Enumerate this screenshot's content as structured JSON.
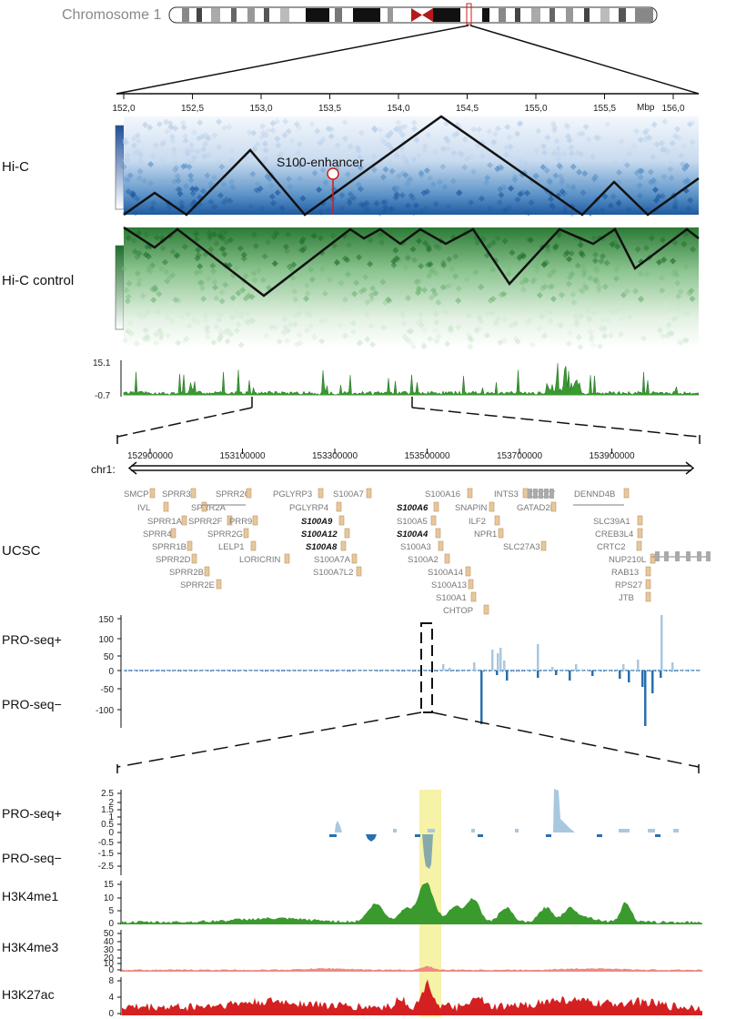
{
  "colors": {
    "hic": "#1f5fa8",
    "hic_control": "#2e8b32",
    "green": "#3a9a2e",
    "pro_plus": "#a8c8e0",
    "pro_minus": "#2a6fad",
    "h3k4me3": "#f08a80",
    "h3k27ac": "#d42020",
    "highlight": "#f3ee8a",
    "gene_box": "#e8c89a"
  },
  "chromosome": {
    "label": "Chromosome 1"
  },
  "axis_top": {
    "ticks": [
      "152,0",
      "152,5",
      "153,0",
      "153,5",
      "154,0",
      "154,5",
      "155,0",
      "155,5",
      "156,0"
    ],
    "unit": "Mbp"
  },
  "tracks": {
    "hic": "Hi-C",
    "hic_control": "Hi-C control",
    "ucsc": "UCSC",
    "pro_plus": "PRO-seq+",
    "pro_minus": "PRO-seq−",
    "h3k4me1": "H3K4me1",
    "h3k4me3": "H3K4me3",
    "h3k27ac": "H3K27ac"
  },
  "enhancer_label": "S100-enhancer",
  "signal_range": {
    "max": "15.1",
    "min": "-0.7"
  },
  "chr": {
    "label": "chr1:",
    "ticks": [
      "152900000",
      "153100000",
      "153300000",
      "153500000",
      "153700000",
      "153900000"
    ]
  },
  "pro_ticks_1": [
    "150",
    "100",
    "50",
    "0",
    "-50",
    "-100"
  ],
  "pro_ticks_2": [
    "2.5",
    "2",
    "1.5",
    "1",
    "0.5",
    "0",
    "-0.5",
    "-1.5",
    "-2.5"
  ],
  "h3k4me1_ticks": [
    "15",
    "10",
    "5",
    "0"
  ],
  "h3k4me3_ticks": [
    "50",
    "40",
    "30",
    "20",
    "10",
    "0"
  ],
  "h3k27ac_ticks": [
    "8",
    "4",
    "0"
  ],
  "genes": {
    "SMCP": "SMCP",
    "IVL": "IVL",
    "SPRR3": "SPRR3",
    "SPRR2A": "SPRR2A",
    "SPRR2C": "SPRR2C",
    "SPRR1A": "SPRR1A",
    "SPRR2F": "SPRR2F",
    "SPRR4": "SPRR4",
    "SPRR2G": "SPRR2G",
    "SPRR1B": "SPRR1B",
    "SPRR2D": "SPRR2D",
    "SPRR2B": "SPRR2B",
    "SPRR2E": "SPRR2E",
    "PRR9": "PRR9",
    "LELP1": "LELP1",
    "LORICRIN": "LORICRIN",
    "PGLYRP3": "PGLYRP3",
    "PGLYRP4": "PGLYRP4",
    "S100A9": "S100A9",
    "S100A12": "S100A12",
    "S100A8": "S100A8",
    "S100A7": "S100A7",
    "S100A7A": "S100A7A",
    "S100A7L2": "S100A7L2",
    "S100A16": "S100A16",
    "S100A6": "S100A6",
    "S100A5": "S100A5",
    "S100A4": "S100A4",
    "S100A3": "S100A3",
    "S100A2": "S100A2",
    "S100A14": "S100A14",
    "S100A13": "S100A13",
    "S100A1": "S100A1",
    "CHTOP": "CHTOP",
    "SNAPIN": "SNAPIN",
    "ILF2": "ILF2",
    "NPR1": "NPR1",
    "INTS3": "INTS3",
    "GATAD2B": "GATAD2B",
    "SLC27A3": "SLC27A3",
    "DENND4B": "DENND4B",
    "SLC39A1": "SLC39A1",
    "CREB3L4": "CREB3L4",
    "CRTC2": "CRTC2",
    "NUP210L": "NUP210L",
    "RAB13": "RAB13",
    "RPS27": "RPS27",
    "JTB": "JTB"
  }
}
